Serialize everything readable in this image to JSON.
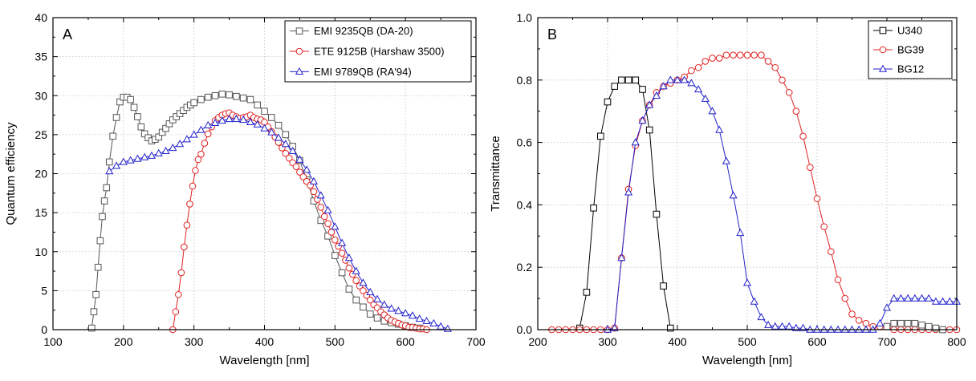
{
  "chart_data": [
    {
      "type": "line",
      "panel_label": "A",
      "xlabel": "Wavelength [nm]",
      "ylabel": "Quantum efficiency",
      "xlim": [
        100,
        700
      ],
      "ylim": [
        0,
        40
      ],
      "xticks": [
        100,
        200,
        300,
        400,
        500,
        600,
        700
      ],
      "yticks": [
        0,
        5,
        10,
        15,
        20,
        25,
        30,
        35,
        40
      ],
      "grid": true,
      "legend_position": "top-right",
      "series": [
        {
          "name": "EMI 9235QB (DA-20)",
          "color": "#555555",
          "marker": "square",
          "x": [
            155,
            158,
            161,
            164,
            167,
            170,
            173,
            176,
            180,
            185,
            190,
            195,
            200,
            205,
            210,
            215,
            220,
            225,
            230,
            235,
            240,
            245,
            250,
            255,
            260,
            265,
            270,
            275,
            280,
            285,
            290,
            295,
            300,
            310,
            320,
            330,
            340,
            350,
            360,
            370,
            380,
            390,
            400,
            410,
            420,
            430,
            440,
            450,
            460,
            470,
            480,
            490,
            500,
            510,
            520,
            530,
            540,
            550,
            560,
            570,
            580,
            590,
            600,
            610,
            620
          ],
          "y": [
            0.2,
            2.3,
            4.5,
            8,
            11.4,
            14.5,
            16.5,
            18.2,
            21.5,
            24.8,
            27.2,
            29.2,
            29.8,
            29.8,
            29.5,
            28.5,
            27.3,
            26,
            25.1,
            24.6,
            24.2,
            24.4,
            24.7,
            25.3,
            25.8,
            26.4,
            26.9,
            27.3,
            27.7,
            28.1,
            28.5,
            28.8,
            29.1,
            29.5,
            29.8,
            30,
            30.2,
            30.1,
            29.9,
            29.7,
            29.5,
            28.8,
            28,
            27.2,
            26.2,
            25,
            23.5,
            21.7,
            19.2,
            16.5,
            14,
            12,
            9.5,
            7.3,
            5.2,
            3.8,
            2.9,
            2,
            1.5,
            1.1,
            0.9,
            0.7,
            0.5,
            0.3,
            0.2
          ]
        },
        {
          "name": "ETE 9125B (Harshaw 3500)",
          "color": "#e02020",
          "marker": "circle",
          "x": [
            270,
            274,
            278,
            282,
            286,
            290,
            294,
            298,
            302,
            306,
            310,
            315,
            320,
            325,
            330,
            335,
            340,
            345,
            350,
            355,
            360,
            365,
            370,
            375,
            380,
            385,
            390,
            395,
            400,
            405,
            410,
            415,
            420,
            425,
            430,
            435,
            440,
            445,
            450,
            455,
            460,
            465,
            470,
            475,
            480,
            485,
            490,
            495,
            500,
            505,
            510,
            515,
            520,
            525,
            530,
            535,
            540,
            545,
            550,
            555,
            560,
            565,
            570,
            575,
            580,
            585,
            590,
            595,
            600,
            605,
            610,
            615,
            620,
            625,
            630
          ],
          "y": [
            0,
            2.3,
            4.5,
            7.3,
            10.6,
            13.4,
            16.1,
            18.4,
            20.4,
            21.8,
            22.5,
            23.9,
            25.1,
            26,
            26.8,
            27.2,
            27.5,
            27.7,
            27.8,
            27.5,
            27.3,
            27.1,
            27.2,
            27.3,
            27.5,
            27.2,
            27,
            26.9,
            26.6,
            26,
            25.4,
            24.7,
            24,
            23.3,
            22.6,
            22,
            21.4,
            20.9,
            20.2,
            19.6,
            19,
            18.5,
            17.7,
            16.7,
            15.7,
            14.5,
            13.6,
            12.5,
            11.5,
            10.7,
            9.8,
            8.9,
            7.9,
            7.1,
            6.3,
            5.6,
            5,
            4.4,
            3.8,
            3.2,
            2.8,
            2.3,
            1.9,
            1.5,
            1.2,
            1,
            0.8,
            0.6,
            0.5,
            0.3,
            0.3,
            0.2,
            0.1,
            0.1,
            0
          ]
        },
        {
          "name": "EMI 9789QB (RA'94)",
          "color": "#2222cc",
          "marker": "triangle",
          "x": [
            180,
            190,
            200,
            210,
            220,
            230,
            240,
            250,
            260,
            270,
            280,
            290,
            300,
            310,
            320,
            330,
            340,
            350,
            360,
            370,
            380,
            390,
            400,
            410,
            420,
            430,
            440,
            450,
            460,
            470,
            480,
            490,
            500,
            510,
            520,
            530,
            540,
            550,
            560,
            570,
            580,
            590,
            600,
            610,
            620,
            630,
            640,
            650,
            660
          ],
          "y": [
            20.3,
            21,
            21.5,
            21.7,
            21.9,
            22.1,
            22.3,
            22.6,
            22.9,
            23.3,
            23.8,
            24.4,
            25,
            25.6,
            26.2,
            26.5,
            26.8,
            27,
            27,
            26.9,
            26.6,
            26.3,
            25.8,
            25.3,
            24.6,
            23.8,
            22.9,
            21.8,
            20.5,
            19,
            17.2,
            15.3,
            13.2,
            11.1,
            9.2,
            7.5,
            6,
            4.8,
            3.9,
            3.2,
            2.7,
            2.4,
            2.1,
            1.8,
            1.4,
            1.1,
            0.8,
            0.4,
            0.1
          ]
        }
      ]
    },
    {
      "type": "line",
      "panel_label": "B",
      "xlabel": "Wavelength [nm]",
      "ylabel": "Transmittance",
      "xlim": [
        200,
        800
      ],
      "ylim": [
        0,
        1.0
      ],
      "xticks": [
        200,
        300,
        400,
        500,
        600,
        700,
        800
      ],
      "yticks": [
        "0.0",
        "0.2",
        "0.4",
        "0.6",
        "0.8",
        "1.0"
      ],
      "grid": true,
      "legend_position": "top-right",
      "series": [
        {
          "name": "U340",
          "color": "#000000",
          "marker": "square",
          "x": [
            260,
            270,
            280,
            290,
            300,
            310,
            320,
            330,
            340,
            350,
            360,
            370,
            380,
            390
          ],
          "y": [
            0.005,
            0.12,
            0.39,
            0.62,
            0.73,
            0.78,
            0.8,
            0.8,
            0.8,
            0.77,
            0.64,
            0.37,
            0.14,
            0.005
          ]
        },
        {
          "name": "BG39",
          "color": "#e02020",
          "marker": "circle",
          "x": [
            220,
            230,
            240,
            250,
            260,
            270,
            280,
            290,
            300,
            310,
            320,
            330,
            340,
            350,
            360,
            370,
            380,
            390,
            400,
            410,
            420,
            430,
            440,
            450,
            460,
            470,
            480,
            490,
            500,
            510,
            520,
            530,
            540,
            550,
            560,
            570,
            580,
            590,
            600,
            610,
            620,
            630,
            640,
            650,
            660,
            670,
            680,
            690,
            700,
            710,
            720,
            730,
            740,
            750,
            760,
            770,
            780,
            790,
            800
          ],
          "y": [
            0,
            0,
            0,
            0,
            0,
            0,
            0,
            0,
            0,
            0.005,
            0.23,
            0.45,
            0.59,
            0.67,
            0.72,
            0.76,
            0.78,
            0.79,
            0.8,
            0.81,
            0.83,
            0.84,
            0.86,
            0.87,
            0.87,
            0.88,
            0.88,
            0.88,
            0.88,
            0.88,
            0.88,
            0.86,
            0.84,
            0.8,
            0.76,
            0.7,
            0.62,
            0.52,
            0.42,
            0.33,
            0.25,
            0.16,
            0.1,
            0.05,
            0.03,
            0.02,
            0.01,
            0.01,
            0.01,
            0,
            0,
            0,
            0,
            0,
            0,
            0,
            0,
            0,
            0
          ]
        },
        {
          "name": "BG12",
          "color": "#2222cc",
          "marker": "triangle",
          "x": [
            300,
            310,
            320,
            330,
            340,
            350,
            360,
            370,
            380,
            390,
            400,
            410,
            420,
            430,
            440,
            450,
            460,
            470,
            480,
            490,
            500,
            510,
            520,
            530,
            540,
            550,
            560,
            570,
            580,
            590,
            600,
            610,
            620,
            630,
            640,
            650,
            660,
            670,
            680,
            690,
            700,
            710,
            720,
            730,
            740,
            750,
            760,
            770,
            780,
            790,
            800
          ],
          "y": [
            0,
            0.005,
            0.23,
            0.44,
            0.6,
            0.67,
            0.72,
            0.75,
            0.78,
            0.8,
            0.8,
            0.8,
            0.79,
            0.77,
            0.74,
            0.7,
            0.64,
            0.54,
            0.43,
            0.31,
            0.15,
            0.09,
            0.04,
            0.015,
            0.01,
            0.01,
            0.01,
            0.005,
            0.005,
            0,
            0,
            0,
            0,
            0,
            0,
            0,
            0,
            0,
            0,
            0.02,
            0.07,
            0.1,
            0.1,
            0.1,
            0.1,
            0.1,
            0.1,
            0.09,
            0.09,
            0.09,
            0.09
          ]
        },
        {
          "name": "",
          "color": "#555555",
          "marker": "square",
          "x": [
            700,
            710,
            720,
            730,
            740,
            750,
            760,
            770,
            780
          ],
          "y": [
            0.01,
            0.02,
            0.02,
            0.02,
            0.02,
            0.015,
            0.01,
            0.005,
            0
          ]
        }
      ]
    }
  ]
}
